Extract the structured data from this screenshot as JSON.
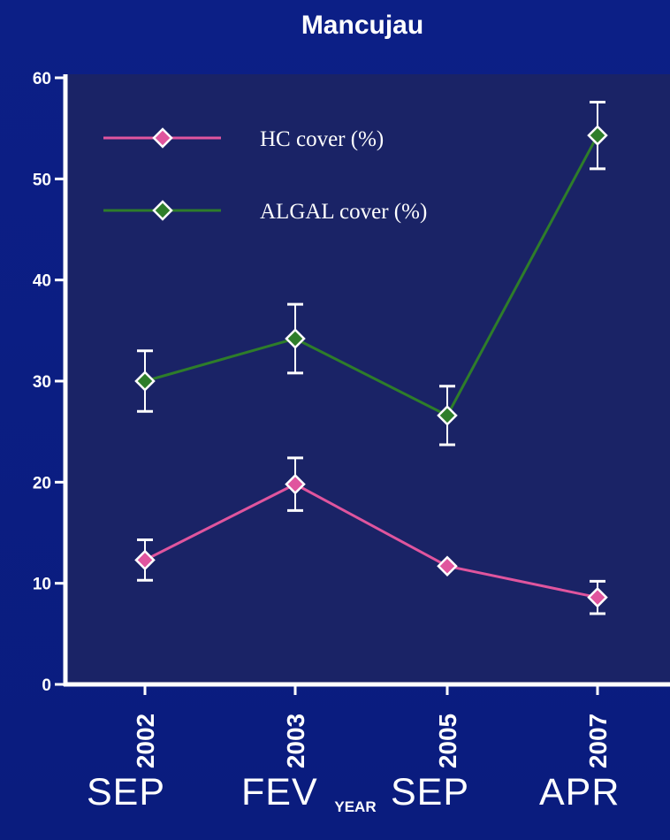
{
  "chart_data": {
    "type": "line",
    "title": "Mancujau",
    "xlabel": "YEAR",
    "ylabel": "",
    "categories": [
      "2002",
      "2003",
      "2005",
      "2007"
    ],
    "ylim": [
      0,
      60
    ],
    "yticks": [
      0,
      10,
      20,
      30,
      40,
      50,
      60
    ],
    "grid": false,
    "legend_position": "top-left",
    "series": [
      {
        "name": "HC cover (%)",
        "color": "#e0559e",
        "values": [
          12.3,
          19.8,
          11.7,
          8.6
        ],
        "err": [
          2.0,
          2.6,
          0,
          1.6
        ]
      },
      {
        "name": "ALGAL cover (%)",
        "color": "#2e7d2a",
        "values": [
          30.0,
          34.2,
          26.6,
          54.3
        ],
        "err": [
          3.0,
          3.4,
          2.9,
          3.3
        ]
      }
    ]
  },
  "months": [
    "SEP",
    "FEV",
    "SEP",
    "APR"
  ],
  "colors": {
    "background": "#0c1f86",
    "plot_area": "#1a2366",
    "axis": "#ffffff"
  }
}
